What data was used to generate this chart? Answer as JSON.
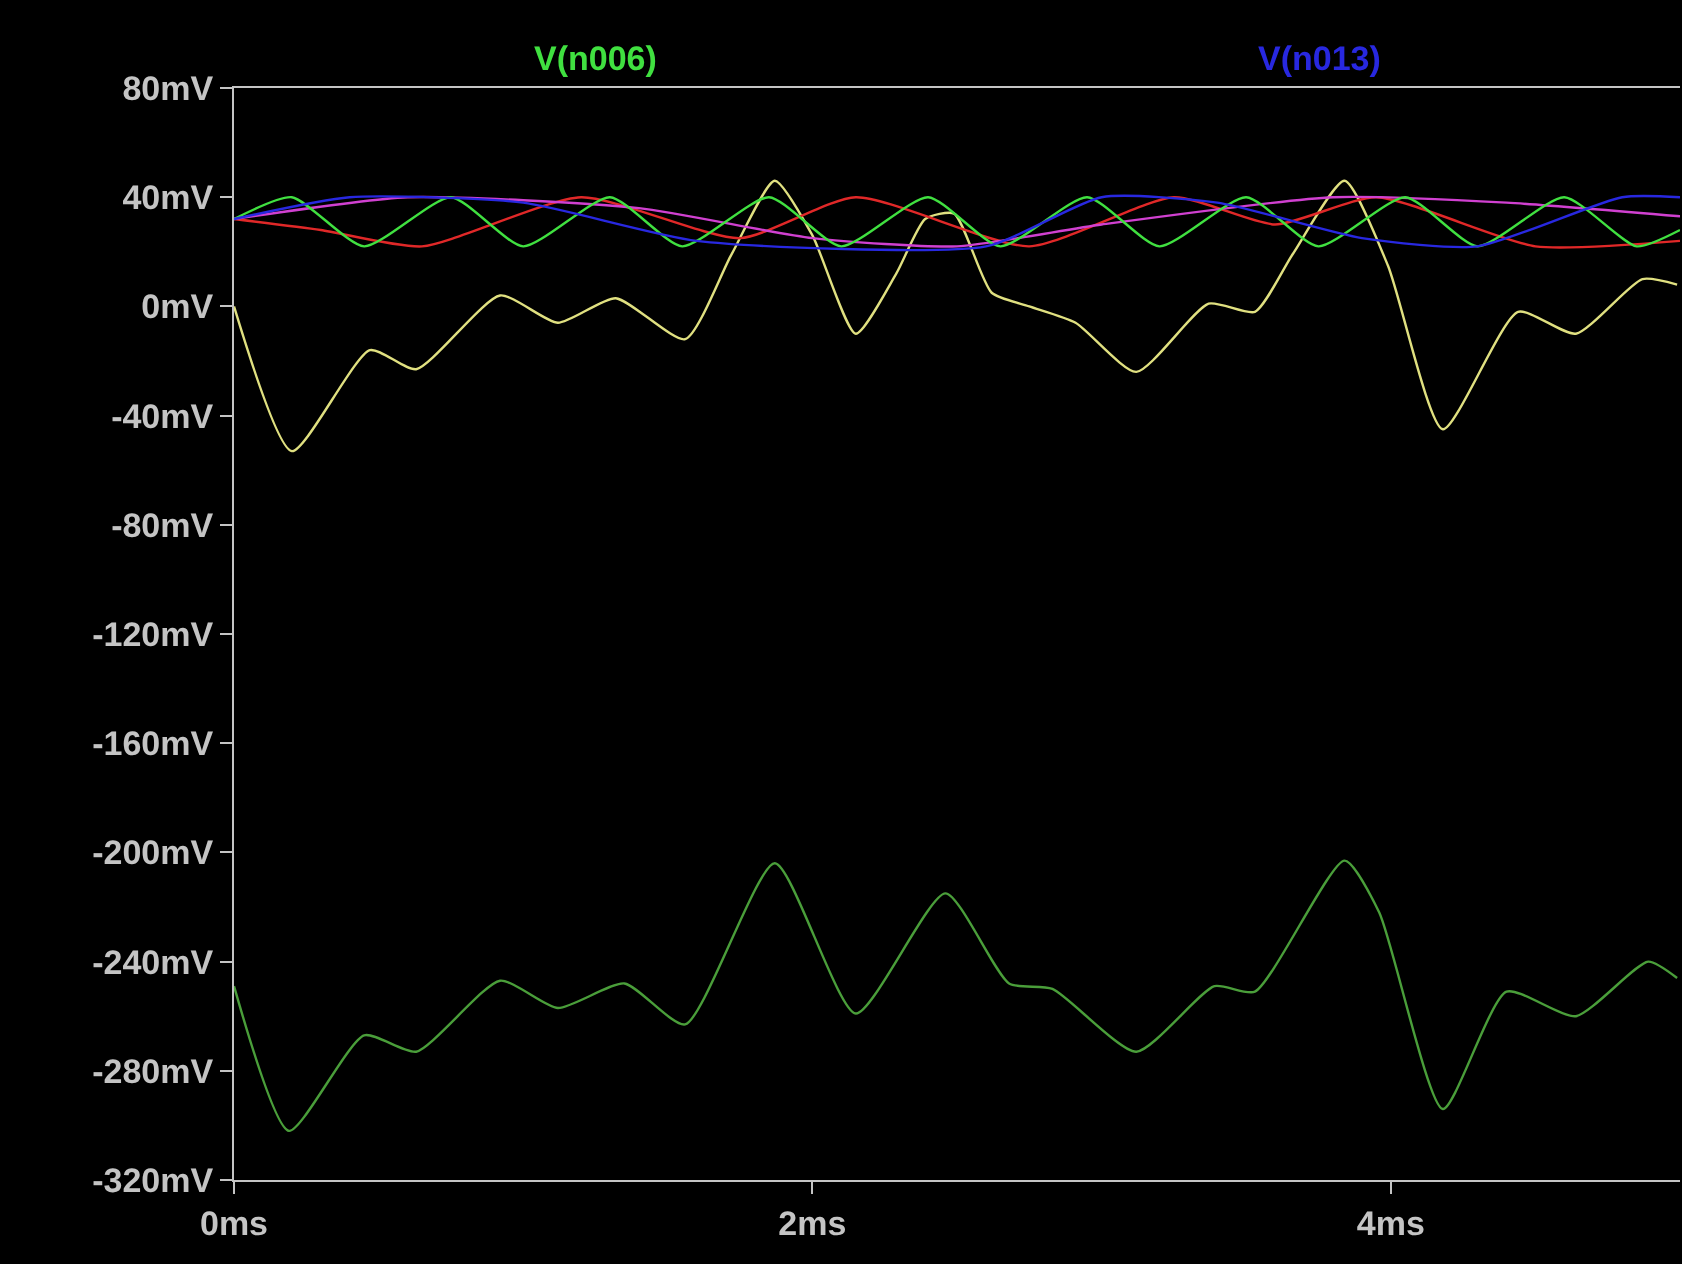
{
  "chart_data": {
    "type": "line",
    "xlim": [
      0,
      5
    ],
    "ylim": [
      -320,
      80
    ],
    "xticks": [
      {
        "value": 0,
        "label": "0ms"
      },
      {
        "value": 2,
        "label": "2ms"
      },
      {
        "value": 4,
        "label": "4ms"
      }
    ],
    "yticks": [
      {
        "value": 80,
        "label": "80mV"
      },
      {
        "value": 40,
        "label": "40mV"
      },
      {
        "value": 0,
        "label": "0mV"
      },
      {
        "value": -40,
        "label": "-40mV"
      },
      {
        "value": -80,
        "label": "-80mV"
      },
      {
        "value": -120,
        "label": "-120mV"
      },
      {
        "value": -160,
        "label": "-160mV"
      },
      {
        "value": -200,
        "label": "-200mV"
      },
      {
        "value": -240,
        "label": "-240mV"
      },
      {
        "value": -280,
        "label": "-280mV"
      },
      {
        "value": -320,
        "label": "-320mV"
      }
    ],
    "grid": false,
    "legend": "top",
    "marker": "none",
    "line_style": "solid",
    "series": [
      {
        "color": "#e0e080",
        "x": [
          0,
          0.2,
          0.47,
          0.63,
          0.92,
          1.12,
          1.32,
          1.56,
          1.72,
          1.87,
          2.0,
          2.15,
          2.29,
          2.39,
          2.49,
          2.62,
          2.75,
          2.91,
          3.12,
          3.37,
          3.53,
          3.66,
          3.84,
          3.99,
          4.18,
          4.44,
          4.64,
          4.87,
          4.99
        ],
        "values": [
          0,
          -53,
          -16,
          -23,
          4,
          -6,
          3,
          -12,
          19,
          46,
          26,
          -10,
          12,
          32,
          34,
          5,
          0,
          -6,
          -24,
          1,
          -2,
          19,
          46,
          15,
          -45,
          -2,
          -10,
          10,
          8
        ]
      },
      {
        "color": "#4a9e3a",
        "x": [
          0,
          0.19,
          0.45,
          0.63,
          0.92,
          1.12,
          1.35,
          1.56,
          1.87,
          2.15,
          2.46,
          2.68,
          2.83,
          3.12,
          3.39,
          3.53,
          3.84,
          3.96,
          4.18,
          4.4,
          4.64,
          4.89,
          4.99
        ],
        "values": [
          -249,
          -302,
          -267,
          -273,
          -247,
          -257,
          -248,
          -263,
          -204,
          -259,
          -215,
          -248,
          -250,
          -273,
          -249,
          -251,
          -203,
          -222,
          -294,
          -251,
          -260,
          -240,
          -246
        ]
      },
      {
        "color": "#e02828",
        "x": [
          0,
          0.3,
          0.65,
          1.2,
          1.75,
          2.15,
          2.75,
          3.25,
          3.6,
          3.95,
          4.5,
          5
        ],
        "values": [
          32,
          28,
          22,
          40,
          25,
          40,
          22,
          40,
          30,
          40,
          22,
          24
        ]
      },
      {
        "color": "#d040d0",
        "x": [
          0,
          0.6,
          1.4,
          2.0,
          2.5,
          3.0,
          3.8,
          4.4,
          5
        ],
        "values": [
          32,
          40,
          36,
          25,
          22,
          30,
          40,
          38,
          33
        ]
      },
      {
        "name": "V(n006)",
        "color": "#40e040",
        "x": [
          0,
          0.2,
          0.45,
          0.75,
          1.0,
          1.3,
          1.55,
          1.85,
          2.1,
          2.4,
          2.65,
          2.95,
          3.2,
          3.5,
          3.75,
          4.05,
          4.3,
          4.6,
          4.85,
          5
        ],
        "values": [
          32,
          40,
          22,
          40,
          22,
          40,
          22,
          40,
          22,
          40,
          22,
          40,
          22,
          40,
          22,
          40,
          22,
          40,
          22,
          28
        ]
      },
      {
        "name": "V(n013)",
        "color": "#2828e0",
        "x": [
          0,
          0.4,
          1.0,
          1.6,
          2.6,
          3.0,
          3.4,
          3.9,
          4.3,
          4.8,
          5
        ],
        "values": [
          32,
          40,
          38,
          24,
          22,
          40,
          38,
          25,
          22,
          40,
          40
        ]
      }
    ]
  }
}
